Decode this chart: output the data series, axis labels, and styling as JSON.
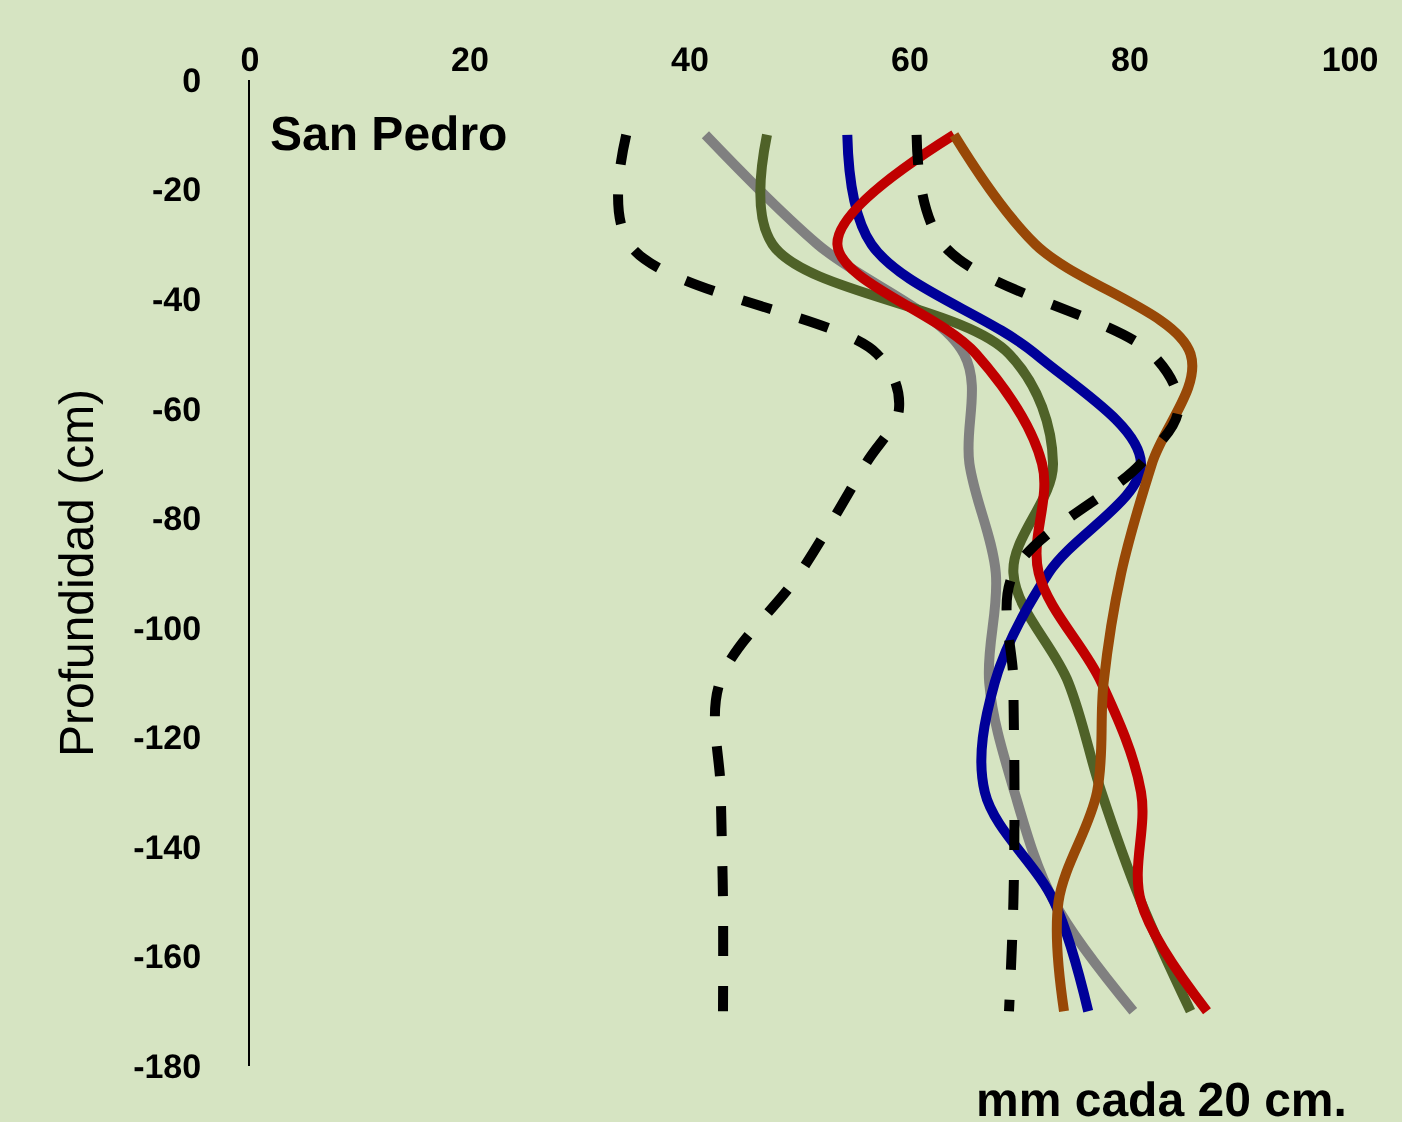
{
  "chart_data": {
    "type": "line",
    "title": "San Pedro",
    "xlabel": "mm cada 20 cm.",
    "ylabel": "Profundidad (cm)",
    "xlim": [
      0,
      100
    ],
    "xticks": [
      0,
      20,
      40,
      60,
      80,
      100
    ],
    "ylim": [
      -180,
      0
    ],
    "yticks": [
      0,
      -20,
      -40,
      -60,
      -80,
      -100,
      -120,
      -140,
      -160,
      -180
    ],
    "grid": false,
    "marker": "none",
    "series": [
      {
        "color": "#000000",
        "line_style": "dashed",
        "x": [
          34.2,
          34.5,
          57,
          59,
          56,
          50,
          42.7,
          42.8,
          43,
          43
        ],
        "values": [
          -10,
          -30,
          -50,
          -60,
          -70,
          -90,
          -110,
          -130,
          -150,
          -170
        ]
      },
      {
        "color": "#808080",
        "x": [
          41.4,
          51.6,
          64.9,
          65.4,
          67.8,
          67.2,
          69.5,
          73.1,
          80.3
        ],
        "values": [
          -10,
          -30,
          -50,
          -70,
          -90,
          -110,
          -130,
          -150,
          -170
        ]
      },
      {
        "color": "#4f6228",
        "x": [
          47,
          47.5,
          69,
          73,
          69.4,
          74.4,
          77.4,
          81,
          85.5
        ],
        "values": [
          -10,
          -30,
          -50,
          -70,
          -90,
          -110,
          -130,
          -150,
          -170
        ]
      },
      {
        "color": "#000099",
        "x": [
          54.3,
          56.5,
          71.4,
          81,
          72.6,
          67.7,
          66.8,
          73.1,
          76.2
        ],
        "values": [
          -10,
          -30,
          -50,
          -70,
          -90,
          -110,
          -130,
          -150,
          -170
        ]
      },
      {
        "color": "#c00000",
        "x": [
          64,
          53.4,
          66,
          72,
          71.7,
          77.4,
          81,
          81,
          87
        ],
        "values": [
          -10,
          -30,
          -50,
          -70,
          -90,
          -110,
          -130,
          -150,
          -170
        ]
      },
      {
        "color": "#984807",
        "x": [
          64,
          71.4,
          85.5,
          82,
          79.2,
          77.6,
          77,
          73.5,
          74
        ],
        "values": [
          -10,
          -30,
          -50,
          -70,
          -90,
          -110,
          -130,
          -150,
          -170
        ]
      },
      {
        "color": "#000000",
        "line_style": "dashed",
        "x": [
          60.6,
          63,
          82,
          84.4,
          81,
          69.4,
          69.4,
          69.5,
          69.4,
          69
        ],
        "values": [
          -10,
          -30,
          -50,
          -60,
          -70,
          -90,
          -110,
          -130,
          -150,
          -170
        ]
      }
    ]
  }
}
